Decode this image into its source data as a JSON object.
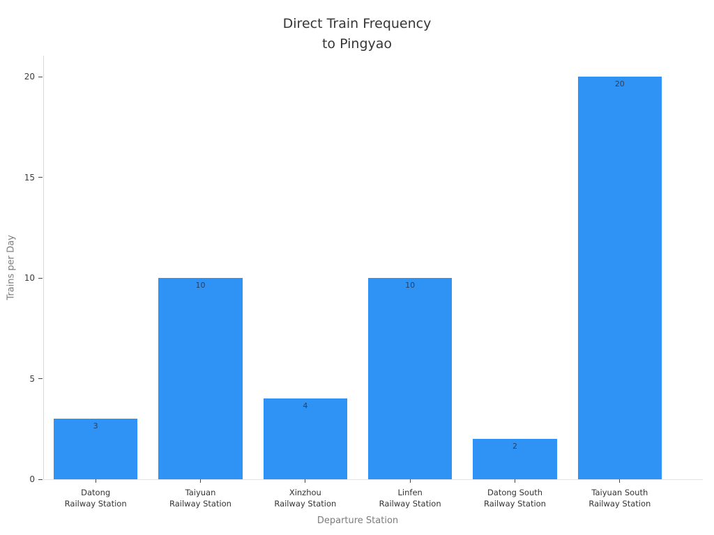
{
  "title": {
    "line1": "Direct Train Frequency",
    "line2": "to Pingyao"
  },
  "chart_data": {
    "type": "bar",
    "title": "Direct Train Frequency to Pingyao",
    "xlabel": "Departure Station",
    "ylabel": "Trains per Day",
    "categories": [
      "Datong Railway Station",
      "Taiyuan Railway Station",
      "Xinzhou Railway Station",
      "Linfen Railway Station",
      "Datong South Railway Station",
      "Taiyuan South Railway Station"
    ],
    "category_lines": [
      [
        "Datong",
        "Railway Station"
      ],
      [
        "Taiyuan",
        "Railway Station"
      ],
      [
        "Xinzhou",
        "Railway Station"
      ],
      [
        "Linfen",
        "Railway Station"
      ],
      [
        "Datong South",
        "Railway Station"
      ],
      [
        "Taiyuan South",
        "Railway Station"
      ]
    ],
    "values": [
      3,
      10,
      4,
      10,
      2,
      20
    ],
    "yticks": [
      0,
      5,
      10,
      15,
      20
    ],
    "ylim": [
      0,
      21
    ],
    "grid": false,
    "legend": null,
    "bar_color": "#2E93F5",
    "value_label_position": "inside-top",
    "value_label_color": "#2a3f5f"
  }
}
